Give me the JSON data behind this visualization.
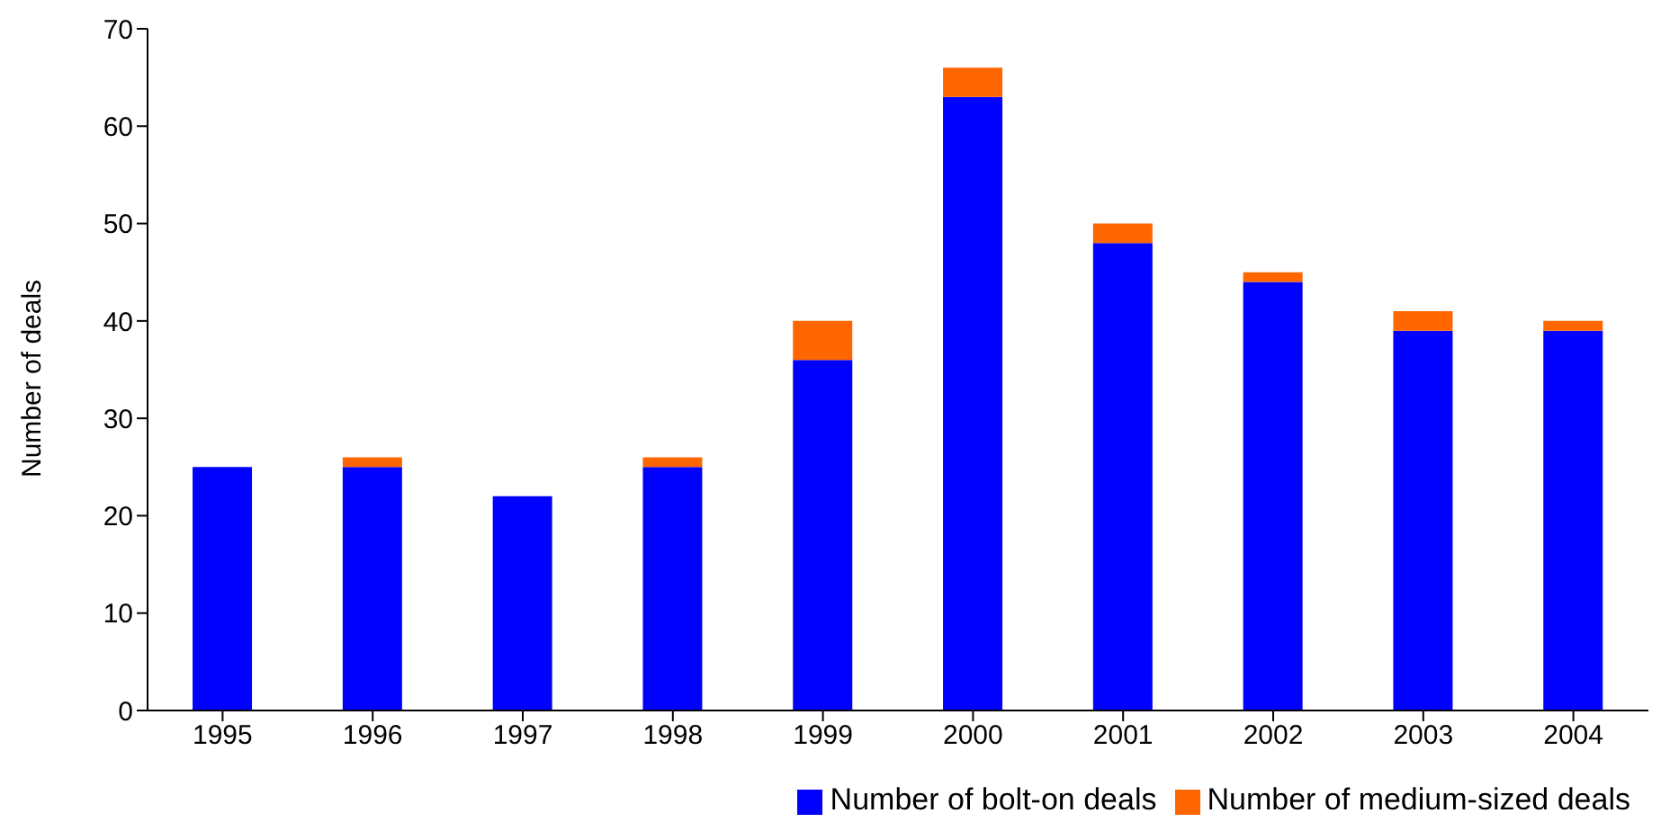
{
  "chart_data": {
    "type": "bar",
    "stacked": true,
    "ylabel": "Number of deals",
    "categories": [
      "1995",
      "1996",
      "1997",
      "1998",
      "1999",
      "2000",
      "2001",
      "2002",
      "2003",
      "2004"
    ],
    "series": [
      {
        "name": "Number of bolt-on deals",
        "color": "#0000ff",
        "values": [
          25,
          25,
          22,
          25,
          36,
          63,
          48,
          44,
          39,
          39
        ]
      },
      {
        "name": "Number of medium-sized deals",
        "color": "#ff6600",
        "values": [
          0,
          1,
          0,
          1,
          4,
          3,
          2,
          1,
          2,
          1
        ]
      }
    ],
    "ylim": [
      0,
      70
    ],
    "yticks": [
      0,
      10,
      20,
      30,
      40,
      50,
      60,
      70
    ],
    "grid": false,
    "legend": "bottom right"
  }
}
